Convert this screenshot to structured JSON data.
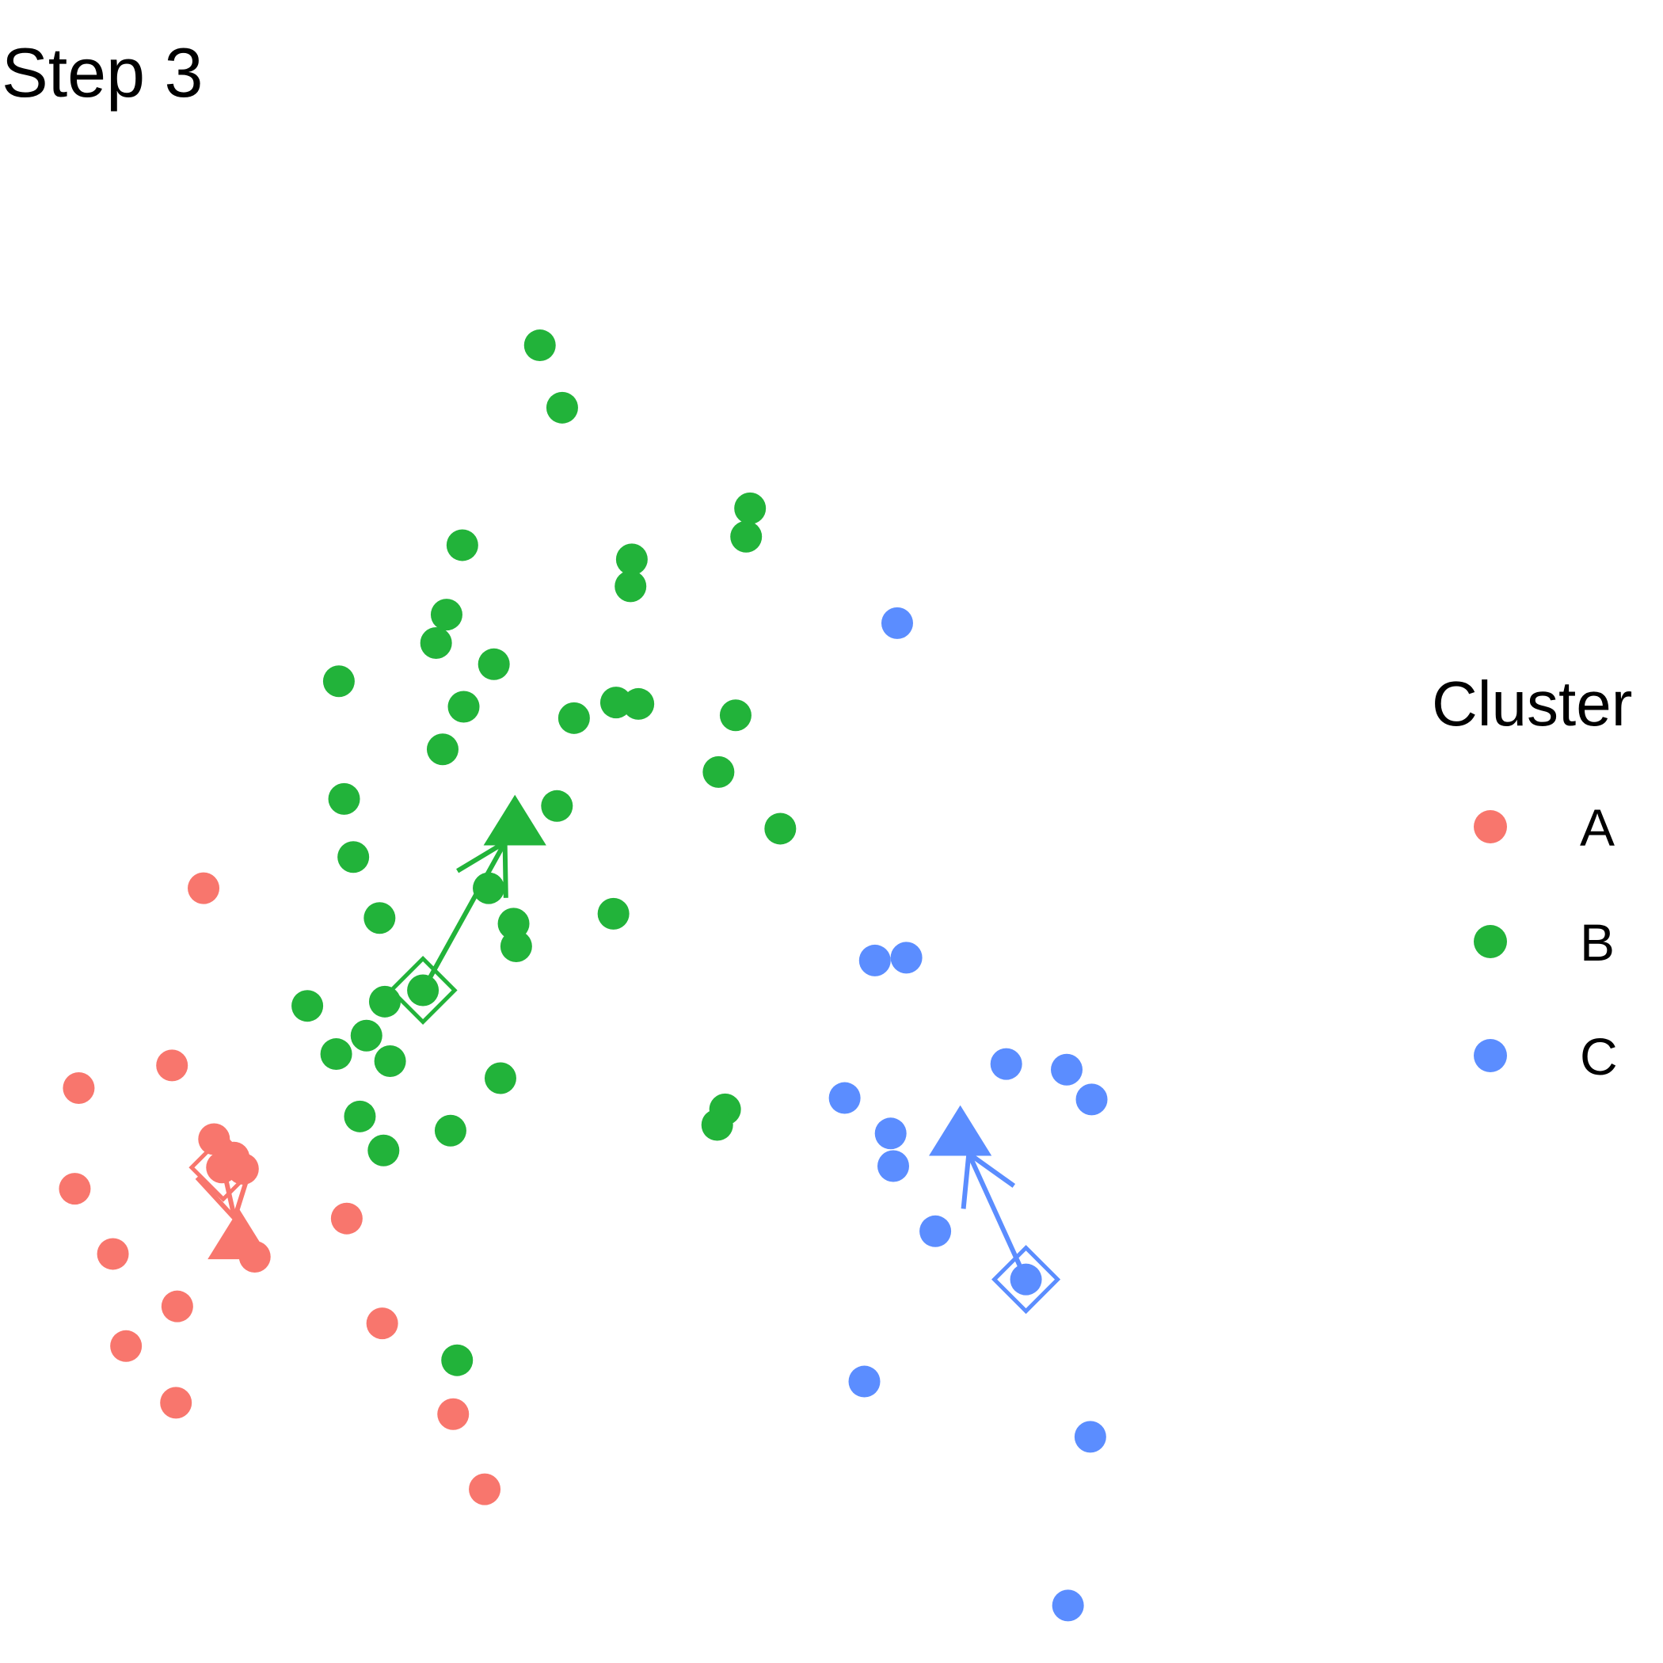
{
  "title": "Step 3",
  "legend": {
    "title": "Cluster",
    "items": [
      {
        "label": "A",
        "color": "#F8766D"
      },
      {
        "label": "B",
        "color": "#22B33A"
      },
      {
        "label": "C",
        "color": "#5B8DFF"
      }
    ]
  },
  "chart_data": {
    "type": "scatter",
    "title": "Step 3",
    "xlabel": "",
    "ylabel": "",
    "grid": false,
    "axes_visible": false,
    "legend_position": "right",
    "xlim": [
      0,
      100
    ],
    "ylim": [
      0,
      100
    ],
    "series": [
      {
        "name": "A",
        "color": "#F8766D",
        "points": [
          [
            12.6,
            50.3
          ],
          [
            10.2,
            37.8
          ],
          [
            3.1,
            36.2
          ],
          [
            2.8,
            29.1
          ],
          [
            5.7,
            24.5
          ],
          [
            10.6,
            20.8
          ],
          [
            6.7,
            18.0
          ],
          [
            10.5,
            14.0
          ],
          [
            13.4,
            32.6
          ],
          [
            14.9,
            31.3
          ],
          [
            14.0,
            30.6
          ],
          [
            15.6,
            30.5
          ],
          [
            16.5,
            24.3
          ],
          [
            23.5,
            27.0
          ],
          [
            26.2,
            19.6
          ],
          [
            31.6,
            13.2
          ],
          [
            34.0,
            7.9
          ]
        ],
        "centroid_old": [
          14.1,
          30.6
        ],
        "centroid_new": [
          15.3,
          25.6
        ]
      },
      {
        "name": "B",
        "color": "#22B33A",
        "points": [
          [
            38.2,
            88.6
          ],
          [
            39.9,
            84.2
          ],
          [
            54.2,
            77.1
          ],
          [
            53.9,
            75.1
          ],
          [
            32.3,
            74.5
          ],
          [
            45.2,
            73.5
          ],
          [
            45.1,
            71.6
          ],
          [
            31.1,
            69.6
          ],
          [
            30.3,
            67.6
          ],
          [
            34.7,
            66.1
          ],
          [
            22.9,
            64.9
          ],
          [
            32.4,
            63.1
          ],
          [
            40.8,
            62.3
          ],
          [
            44.0,
            63.4
          ],
          [
            45.7,
            63.3
          ],
          [
            53.1,
            62.5
          ],
          [
            30.8,
            60.1
          ],
          [
            51.8,
            58.5
          ],
          [
            23.3,
            56.6
          ],
          [
            39.5,
            56.1
          ],
          [
            56.5,
            54.5
          ],
          [
            24.0,
            52.5
          ],
          [
            34.3,
            50.3
          ],
          [
            26.0,
            48.2
          ],
          [
            36.2,
            47.8
          ],
          [
            36.4,
            46.2
          ],
          [
            43.8,
            48.5
          ],
          [
            29.3,
            43.1
          ],
          [
            20.5,
            42.0
          ],
          [
            26.4,
            42.3
          ],
          [
            25.0,
            39.9
          ],
          [
            22.7,
            38.6
          ],
          [
            26.8,
            38.1
          ],
          [
            35.2,
            36.9
          ],
          [
            24.5,
            34.2
          ],
          [
            31.4,
            33.2
          ],
          [
            26.3,
            31.8
          ],
          [
            52.3,
            34.7
          ],
          [
            51.7,
            33.6
          ],
          [
            31.9,
            17.0
          ]
        ],
        "centroid_old": [
          29.3,
          43.1
        ],
        "centroid_new": [
          36.3,
          54.8
        ]
      },
      {
        "name": "C",
        "color": "#5B8DFF",
        "points": [
          [
            65.4,
            69.0
          ],
          [
            63.7,
            45.2
          ],
          [
            66.1,
            45.4
          ],
          [
            73.7,
            37.9
          ],
          [
            78.3,
            37.5
          ],
          [
            80.2,
            35.4
          ],
          [
            61.4,
            35.5
          ],
          [
            64.9,
            33.0
          ],
          [
            65.1,
            30.7
          ],
          [
            68.3,
            26.1
          ],
          [
            75.2,
            22.7
          ],
          [
            62.9,
            15.5
          ],
          [
            80.1,
            11.6
          ],
          [
            78.4,
            -0.3
          ]
        ],
        "centroid_old": [
          75.2,
          22.7
        ],
        "centroid_new": [
          70.2,
          32.9
        ]
      }
    ]
  }
}
